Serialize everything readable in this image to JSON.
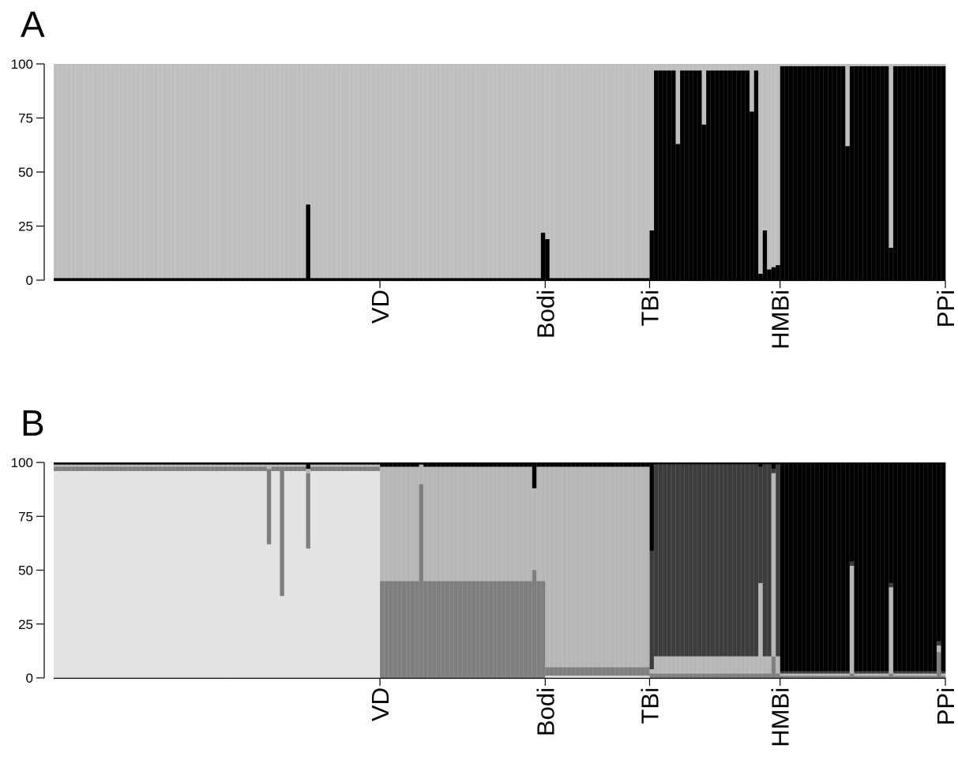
{
  "chart_data": [
    {
      "panel": "A",
      "type": "bar",
      "stacked": true,
      "n_individuals": 205,
      "ylim": [
        0,
        100
      ],
      "yticks": [
        0,
        25,
        50,
        75,
        100
      ],
      "group_labels": [
        "VD",
        "Bodi",
        "TBi",
        "HMBi",
        "PPi"
      ],
      "group_boundaries": [
        75,
        113,
        137,
        167,
        205
      ],
      "cluster_colors": [
        "#000000",
        "#bfbfbf"
      ],
      "series": [
        {
          "segments": [
            {
              "start": 0,
              "end": 137,
              "values": [
                1,
                99
              ]
            },
            {
              "start": 137,
              "end": 167,
              "values": [
                97,
                3
              ]
            },
            {
              "start": 167,
              "end": 205,
              "values": [
                99,
                1
              ]
            }
          ]
        }
      ],
      "notable_individuals": [
        {
          "index": 58,
          "values": [
            35,
            65
          ]
        },
        {
          "index": 112,
          "values": [
            22,
            78
          ]
        },
        {
          "index": 113,
          "values": [
            19,
            81
          ]
        },
        {
          "index": 137,
          "values": [
            23,
            77
          ]
        },
        {
          "index": 143,
          "values": [
            63,
            37
          ]
        },
        {
          "index": 149,
          "values": [
            72,
            28
          ]
        },
        {
          "index": 160,
          "values": [
            78,
            22
          ]
        },
        {
          "index": 162,
          "values": [
            3,
            97
          ]
        },
        {
          "index": 163,
          "values": [
            23,
            77
          ]
        },
        {
          "index": 164,
          "values": [
            5,
            95
          ]
        },
        {
          "index": 165,
          "values": [
            6,
            94
          ]
        },
        {
          "index": 166,
          "values": [
            7,
            93
          ]
        },
        {
          "index": 182,
          "values": [
            62,
            38
          ]
        },
        {
          "index": 192,
          "values": [
            15,
            85
          ]
        }
      ]
    },
    {
      "panel": "B",
      "type": "bar",
      "stacked": true,
      "n_individuals": 205,
      "ylim": [
        0,
        100
      ],
      "yticks": [
        0,
        25,
        50,
        75,
        100
      ],
      "group_labels": [
        "VD",
        "Bodi",
        "TBi",
        "HMBi",
        "PPi"
      ],
      "group_boundaries": [
        75,
        113,
        137,
        167,
        205
      ],
      "cluster_colors": [
        "#e3e3e3",
        "#7f7f7f",
        "#b7b7b7",
        "#3d3d3d",
        "#000000"
      ],
      "series": [
        {
          "segments": [
            {
              "start": 0,
              "end": 75,
              "values": [
                96,
                2,
                1,
                0,
                1
              ]
            },
            {
              "start": 75,
              "end": 113,
              "values": [
                0,
                45,
                53,
                0,
                2
              ]
            },
            {
              "start": 113,
              "end": 137,
              "values": [
                1,
                4,
                93,
                0,
                2
              ]
            },
            {
              "start": 137,
              "end": 167,
              "values": [
                0,
                2,
                8,
                89,
                1
              ]
            },
            {
              "start": 167,
              "end": 205,
              "values": [
                0,
                1,
                1,
                1,
                97
              ]
            }
          ]
        }
      ],
      "notable_individuals": [
        {
          "index": 49,
          "values": [
            62,
            35,
            2,
            0,
            1
          ]
        },
        {
          "index": 52,
          "values": [
            38,
            60,
            1,
            0,
            1
          ]
        },
        {
          "index": 58,
          "values": [
            60,
            35,
            2,
            0,
            3
          ]
        },
        {
          "index": 84,
          "values": [
            0,
            90,
            9,
            0,
            1
          ]
        },
        {
          "index": 110,
          "values": [
            0,
            50,
            38,
            0,
            12
          ]
        },
        {
          "index": 137,
          "values": [
            0,
            2,
            2,
            55,
            41
          ]
        },
        {
          "index": 162,
          "values": [
            0,
            2,
            42,
            54,
            2
          ]
        },
        {
          "index": 165,
          "values": [
            0,
            10,
            85,
            2,
            3
          ]
        },
        {
          "index": 183,
          "values": [
            0,
            2,
            50,
            2,
            46
          ]
        },
        {
          "index": 192,
          "values": [
            0,
            2,
            40,
            2,
            56
          ]
        },
        {
          "index": 203,
          "values": [
            0,
            12,
            3,
            2,
            83
          ]
        }
      ]
    }
  ],
  "panels": {
    "a_label": "A",
    "b_label": "B"
  }
}
